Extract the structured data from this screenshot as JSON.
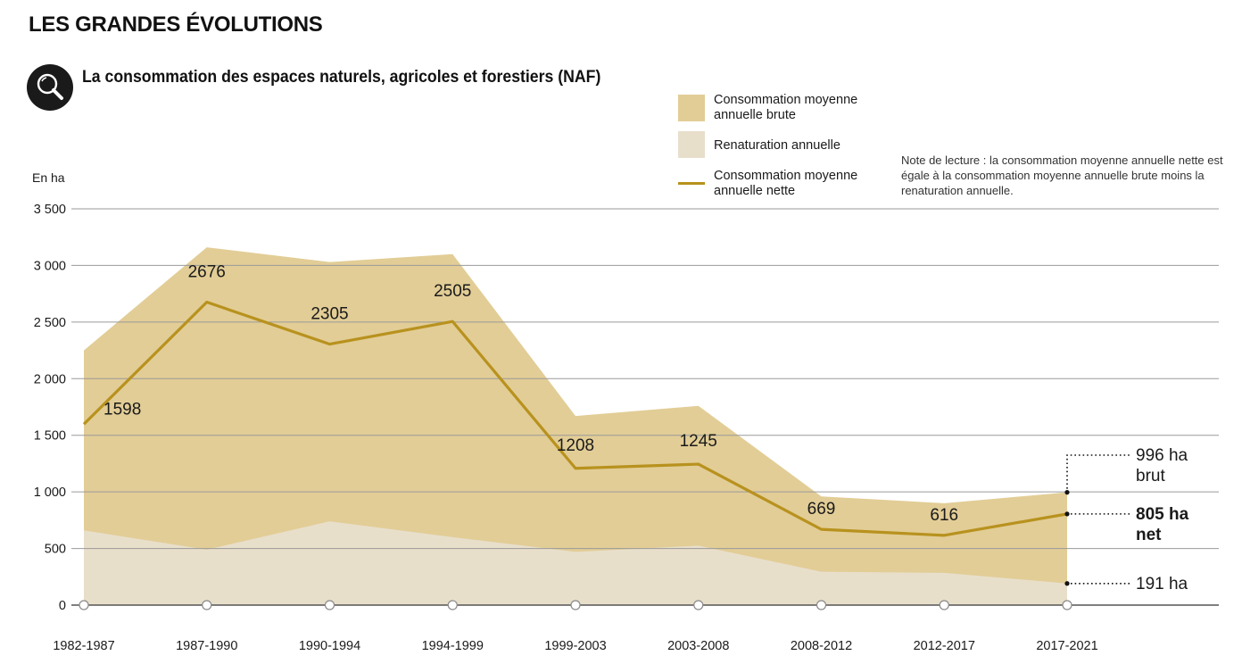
{
  "section_title": "LES GRANDES ÉVOLUTIONS",
  "header": {
    "icon": "search-icon",
    "chart_title": "La consommation des espaces naturels, agricoles et forestiers (NAF)"
  },
  "legend": {
    "items": [
      {
        "label": "Consommation moyenne annuelle brute",
        "color": "#e2cd96",
        "kind": "area"
      },
      {
        "label": "Renaturation annuelle",
        "color": "#e8dfcb",
        "kind": "area"
      },
      {
        "label": "Consommation moyenne annuelle nette",
        "color": "#b8921e",
        "kind": "line"
      }
    ]
  },
  "note": "Note de lecture : la consommation moyenne annuelle nette est égale à la consommation moyenne annuelle brute moins la renaturation annuelle.",
  "chart_data": {
    "type": "area",
    "title": "La consommation des espaces naturels, agricoles et forestiers (NAF)",
    "ylabel": "En ha",
    "ylim": [
      0,
      3500
    ],
    "yticks": [
      0,
      500,
      1000,
      1500,
      2000,
      2500,
      3000,
      3500
    ],
    "ytick_labels": [
      "0",
      "500",
      "1 000",
      "1 500",
      "2 000",
      "2 500",
      "3 000",
      "3 500"
    ],
    "grid": true,
    "legend_position": "top-right",
    "categories": [
      "1982-1987",
      "1987-1990",
      "1990-1994",
      "1994-1999",
      "1999-2003",
      "2003-2008",
      "2008-2012",
      "2012-2017",
      "2017-2021"
    ],
    "series": [
      {
        "name": "Consommation moyenne annuelle brute",
        "type": "area",
        "color": "#e2cd96",
        "values": [
          2250,
          3160,
          3030,
          3100,
          1670,
          1760,
          960,
          900,
          996
        ]
      },
      {
        "name": "Renaturation annuelle",
        "type": "area",
        "color": "#e8dfcb",
        "values": [
          660,
          490,
          740,
          600,
          470,
          525,
          295,
          285,
          191
        ]
      },
      {
        "name": "Consommation moyenne annuelle nette",
        "type": "line",
        "color": "#b8921e",
        "values": [
          1598,
          2676,
          2305,
          2505,
          1208,
          1245,
          669,
          616,
          805
        ]
      }
    ],
    "data_labels": [
      "1598",
      "2676",
      "2305",
      "2505",
      "1208",
      "1245",
      "669",
      "616"
    ],
    "annotations": [
      {
        "value": 996,
        "line1": "996 ha",
        "line2": "brut",
        "bold": false
      },
      {
        "value": 805,
        "line1": "805 ha",
        "line2": "net",
        "bold": true
      },
      {
        "value": 191,
        "line1": "191 ha",
        "line2": "",
        "bold": false
      }
    ]
  }
}
